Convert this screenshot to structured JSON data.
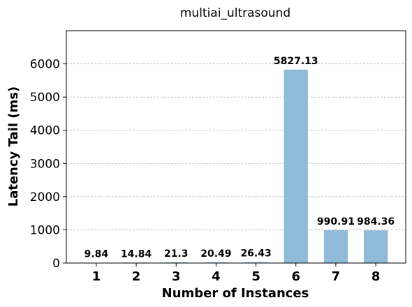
{
  "chart_data": {
    "type": "bar",
    "title": "multiai_ultrasound",
    "xlabel": "Number of Instances",
    "ylabel": "Latency Tail (ms)",
    "categories": [
      "1",
      "2",
      "3",
      "4",
      "5",
      "6",
      "7",
      "8"
    ],
    "values": [
      9.84,
      14.84,
      21.3,
      20.49,
      26.43,
      5827.13,
      990.91,
      984.36
    ],
    "value_labels": [
      "9.84",
      "14.84",
      "21.3",
      "20.49",
      "26.43",
      "5827.13",
      "990.91",
      "984.36"
    ],
    "ylim": [
      0,
      7000
    ],
    "yticks": [
      0,
      1000,
      2000,
      3000,
      4000,
      5000,
      6000
    ],
    "ytick_labels": [
      "0",
      "1000",
      "2000",
      "3000",
      "4000",
      "5000",
      "6000"
    ],
    "bar_color": "#8fbbd9",
    "grid": "y-dashed",
    "legend": "none"
  }
}
